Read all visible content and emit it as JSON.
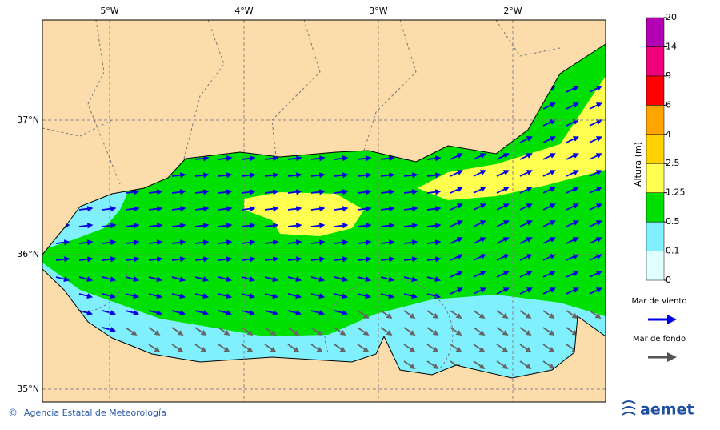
{
  "map": {
    "lon_labels": [
      "5°W",
      "4°W",
      "3°W",
      "2°W"
    ],
    "lat_labels": [
      "37°N",
      "36°N",
      "35°N"
    ],
    "colorbar": {
      "title": "Altura (m)",
      "levels": [
        0,
        0.1,
        0.5,
        1.25,
        2.5,
        4,
        6,
        9,
        14,
        20
      ],
      "colors": [
        "#e0ffff",
        "#80f0ff",
        "#00e000",
        "#ffff50",
        "#ffd200",
        "#ffa500",
        "#ff0000",
        "#f0007a",
        "#b400b4"
      ]
    },
    "legend": [
      {
        "label": "Mar de viento",
        "color": "#0000e6"
      },
      {
        "label": "Mar de fondo",
        "color": "#555555"
      }
    ],
    "footer": {
      "credit": "Agencia Estatal de Meteorología",
      "logo": "aemet"
    }
  }
}
